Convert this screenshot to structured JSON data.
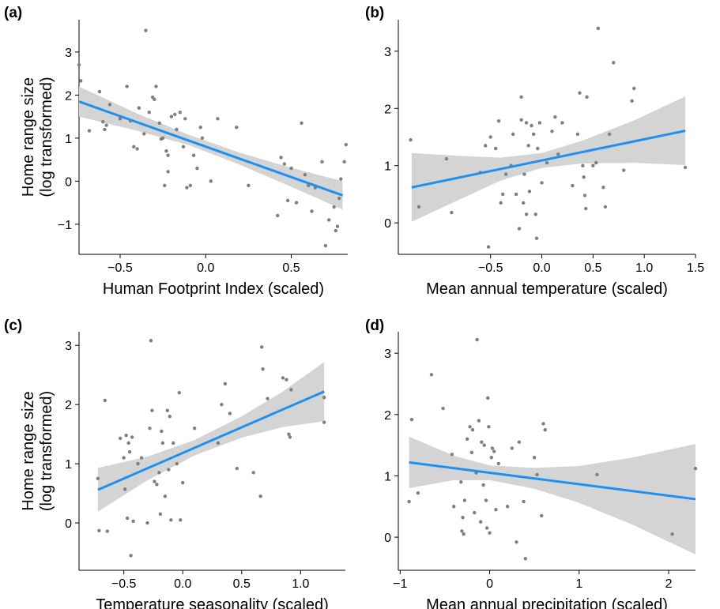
{
  "chart_data": [
    {
      "type": "scatter",
      "panel_label": "(a)",
      "xlabel": "Human Footprint Index (scaled)",
      "ylabel": [
        "Home range size",
        "(log transformed)"
      ],
      "xlim": [
        -0.74,
        0.83
      ],
      "ylim": [
        -1.7,
        3.75
      ],
      "xticks": [
        {
          "value": -0.5,
          "label": "−0.5"
        },
        {
          "value": 0,
          "label": "0.0"
        },
        0.5
      ],
      "yticks": [
        {
          "value": -1,
          "label": "−1"
        },
        0,
        1,
        2,
        3
      ],
      "point_color": "#7f7f7f",
      "line_color": "#1f8ff0",
      "band_color": "#d4d4d4",
      "x": [
        -0.74,
        -0.73,
        -0.68,
        -0.62,
        -0.6,
        -0.59,
        -0.58,
        -0.56,
        -0.5,
        -0.46,
        -0.44,
        -0.42,
        -0.4,
        -0.39,
        -0.36,
        -0.35,
        -0.33,
        -0.31,
        -0.3,
        -0.29,
        -0.27,
        -0.26,
        -0.25,
        -0.24,
        -0.23,
        -0.22,
        -0.22,
        -0.2,
        -0.18,
        -0.17,
        -0.15,
        -0.13,
        -0.12,
        -0.11,
        -0.09,
        -0.07,
        -0.05,
        -0.03,
        -0.02,
        0.03,
        0.07,
        0.18,
        0.25,
        0.42,
        0.44,
        0.46,
        0.48,
        0.5,
        0.53,
        0.56,
        0.58,
        0.6,
        0.62,
        0.64,
        0.68,
        0.7,
        0.72,
        0.75,
        0.76,
        0.77,
        0.78,
        0.79,
        0.81,
        0.82
      ],
      "y": [
        2.7,
        2.33,
        1.17,
        2.08,
        1.38,
        1.2,
        1.3,
        1.78,
        1.45,
        2.2,
        1.4,
        0.8,
        0.75,
        1.7,
        1.1,
        3.5,
        1.6,
        1.95,
        1.9,
        2.2,
        1.35,
        0.98,
        1.0,
        -0.1,
        0.7,
        0.6,
        0.22,
        1.5,
        1.55,
        1.2,
        1.6,
        0.8,
        1.45,
        -0.15,
        -0.1,
        0.6,
        0.3,
        1.25,
        1.0,
        0.0,
        1.45,
        1.25,
        -0.1,
        -0.8,
        0.55,
        0.4,
        -0.45,
        0.3,
        -0.5,
        1.35,
        0.15,
        -0.1,
        -0.7,
        -0.15,
        0.45,
        -1.5,
        -0.9,
        -0.6,
        -1.15,
        -1.05,
        -0.4,
        0.05,
        0.45,
        0.85
      ],
      "fit": {
        "x": [
          -0.74,
          0.8
        ],
        "y": [
          1.85,
          -0.33
        ]
      },
      "band": {
        "x": [
          -0.74,
          -0.4,
          -0.1,
          0.2,
          0.5,
          0.8
        ],
        "lower": [
          1.5,
          1.17,
          0.84,
          0.38,
          -0.13,
          -0.66
        ],
        "upper": [
          2.2,
          1.57,
          1.08,
          0.66,
          0.31,
          0.0
        ]
      }
    },
    {
      "type": "scatter",
      "panel_label": "(b)",
      "xlabel": "Mean annual temperature (scaled)",
      "xlim": [
        -1.4,
        1.5
      ],
      "ylim": [
        -0.55,
        3.55
      ],
      "xticks": [
        {
          "value": -0.5,
          "label": "−0.5"
        },
        {
          "value": 0,
          "label": "0.0"
        },
        0.5,
        {
          "value": 1,
          "label": "1.0"
        },
        1.5
      ],
      "yticks": [
        0,
        1,
        2,
        3
      ],
      "point_color": "#7f7f7f",
      "line_color": "#1f8ff0",
      "band_color": "#d4d4d4",
      "x": [
        -1.28,
        -1.2,
        -0.93,
        -0.88,
        -0.6,
        -0.55,
        -0.52,
        -0.5,
        -0.45,
        -0.42,
        -0.4,
        -0.38,
        -0.35,
        -0.3,
        -0.28,
        -0.25,
        -0.22,
        -0.2,
        -0.2,
        -0.18,
        -0.17,
        -0.15,
        -0.15,
        -0.13,
        -0.12,
        -0.1,
        -0.08,
        -0.06,
        -0.05,
        -0.04,
        -0.02,
        0.0,
        0.05,
        0.1,
        0.13,
        0.16,
        0.2,
        0.3,
        0.35,
        0.37,
        0.4,
        0.41,
        0.42,
        0.43,
        0.44,
        0.5,
        0.53,
        0.55,
        0.6,
        0.62,
        0.66,
        0.7,
        0.8,
        0.88,
        0.9,
        1.4
      ],
      "y": [
        1.45,
        0.28,
        1.12,
        0.18,
        0.88,
        1.35,
        -0.42,
        1.5,
        1.3,
        1.78,
        0.35,
        0.5,
        0.85,
        1.0,
        1.55,
        0.5,
        -0.1,
        2.2,
        1.8,
        0.35,
        0.85,
        0.15,
        1.75,
        1.35,
        0.55,
        1.7,
        1.55,
        0.15,
        -0.27,
        1.3,
        1.75,
        0.7,
        1.05,
        1.6,
        1.85,
        1.2,
        1.75,
        0.65,
        1.55,
        2.27,
        1.0,
        0.8,
        0.48,
        0.25,
        2.2,
        1.0,
        1.05,
        3.4,
        0.62,
        0.28,
        1.55,
        2.8,
        0.92,
        2.13,
        2.35,
        0.97
      ],
      "fit": {
        "x": [
          -1.27,
          1.4
        ],
        "y": [
          0.62,
          1.61
        ]
      },
      "band": {
        "x": [
          -1.27,
          -0.8,
          -0.4,
          0,
          0.4,
          0.9,
          1.4
        ],
        "lower": [
          0.02,
          0.41,
          0.74,
          0.96,
          1.04,
          1.05,
          1.01
        ],
        "upper": [
          1.22,
          1.17,
          1.14,
          1.22,
          1.44,
          1.79,
          2.21
        ]
      }
    },
    {
      "type": "scatter",
      "panel_label": "(c)",
      "xlabel": "Temperature seasonality (scaled)",
      "ylabel": [
        "Home range size",
        "(log transformed)"
      ],
      "xlim": [
        -0.88,
        1.38
      ],
      "ylim": [
        -0.8,
        3.23
      ],
      "xticks": [
        {
          "value": -0.5,
          "label": "−0.5"
        },
        {
          "value": 0,
          "label": "0.0"
        },
        0.5,
        {
          "value": 1,
          "label": "1.0"
        }
      ],
      "yticks": [
        0,
        1,
        2,
        3
      ],
      "point_color": "#7f7f7f",
      "line_color": "#1f8ff0",
      "band_color": "#d4d4d4",
      "x": [
        -0.72,
        -0.71,
        -0.66,
        -0.64,
        -0.53,
        -0.5,
        -0.49,
        -0.48,
        -0.47,
        -0.46,
        -0.45,
        -0.44,
        -0.43,
        -0.42,
        -0.38,
        -0.35,
        -0.3,
        -0.28,
        -0.27,
        -0.26,
        -0.24,
        -0.22,
        -0.2,
        -0.19,
        -0.18,
        -0.17,
        -0.15,
        -0.13,
        -0.12,
        -0.11,
        -0.1,
        -0.08,
        -0.05,
        -0.03,
        -0.02,
        0.0,
        0.1,
        0.3,
        0.33,
        0.36,
        0.4,
        0.46,
        0.6,
        0.66,
        0.67,
        0.68,
        0.72,
        0.85,
        0.88,
        0.9,
        0.91,
        0.92,
        1.2,
        1.2
      ],
      "y": [
        0.75,
        -0.13,
        2.07,
        -0.14,
        1.43,
        1.1,
        0.57,
        1.48,
        0.08,
        1.35,
        1.2,
        -0.55,
        1.45,
        0.03,
        1.0,
        1.1,
        0.0,
        1.6,
        3.08,
        1.9,
        0.7,
        0.65,
        0.85,
        0.15,
        1.55,
        1.35,
        0.45,
        1.9,
        0.9,
        1.8,
        0.05,
        1.35,
        1.0,
        2.2,
        0.05,
        0.68,
        1.6,
        1.35,
        2.0,
        2.35,
        1.85,
        0.92,
        0.85,
        0.45,
        2.97,
        2.6,
        2.1,
        2.45,
        2.42,
        1.5,
        1.45,
        2.25,
        1.7,
        2.12
      ],
      "fit": {
        "x": [
          -0.72,
          1.2
        ],
        "y": [
          0.56,
          2.22
        ]
      },
      "band": {
        "x": [
          -0.72,
          -0.3,
          0.1,
          0.5,
          0.85,
          1.2
        ],
        "lower": [
          0.19,
          0.72,
          1.14,
          1.44,
          1.62,
          1.72
        ],
        "upper": [
          0.93,
          1.12,
          1.4,
          1.8,
          2.22,
          2.72
        ]
      }
    },
    {
      "type": "scatter",
      "panel_label": "(d)",
      "xlabel": "Mean annual precipitation (scaled)",
      "xlim": [
        -1.02,
        2.3
      ],
      "ylim": [
        -0.54,
        3.35
      ],
      "xticks": [
        {
          "value": -1,
          "label": "−1"
        },
        0,
        1,
        2
      ],
      "yticks": [
        0,
        1,
        2,
        3
      ],
      "point_color": "#7f7f7f",
      "line_color": "#1f8ff0",
      "band_color": "#d4d4d4",
      "x": [
        -0.9,
        -0.87,
        -0.8,
        -0.65,
        -0.52,
        -0.42,
        -0.4,
        -0.32,
        -0.31,
        -0.3,
        -0.29,
        -0.28,
        -0.25,
        -0.22,
        -0.2,
        -0.19,
        -0.17,
        -0.15,
        -0.14,
        -0.12,
        -0.1,
        -0.09,
        -0.07,
        -0.06,
        -0.04,
        -0.03,
        -0.02,
        -0.01,
        0.0,
        0.02,
        0.03,
        0.05,
        0.07,
        0.1,
        0.2,
        0.25,
        0.3,
        0.33,
        0.38,
        0.4,
        0.5,
        0.53,
        0.58,
        0.6,
        0.62,
        1.2,
        2.04,
        2.3
      ],
      "y": [
        0.58,
        1.92,
        0.72,
        2.65,
        2.1,
        1.35,
        0.5,
        0.9,
        0.1,
        0.32,
        0.05,
        0.6,
        1.6,
        1.8,
        1.38,
        1.75,
        0.4,
        1.05,
        3.22,
        1.9,
        0.25,
        1.55,
        0.85,
        1.5,
        0.6,
        0.15,
        2.27,
        1.8,
        0.07,
        1.3,
        1.45,
        1.4,
        0.45,
        1.2,
        0.5,
        1.45,
        -0.08,
        1.55,
        0.58,
        -0.35,
        1.3,
        1.02,
        0.35,
        1.85,
        1.75,
        1.02,
        0.05,
        1.12
      ],
      "fit": {
        "x": [
          -0.9,
          2.3
        ],
        "y": [
          1.22,
          0.62
        ]
      },
      "band": {
        "x": [
          -0.9,
          -0.4,
          0,
          0.5,
          1.0,
          1.6,
          2.3
        ],
        "lower": [
          0.8,
          0.93,
          0.93,
          0.79,
          0.56,
          0.2,
          -0.28
        ],
        "upper": [
          1.64,
          1.33,
          1.17,
          1.13,
          1.16,
          1.3,
          1.52
        ]
      }
    }
  ]
}
